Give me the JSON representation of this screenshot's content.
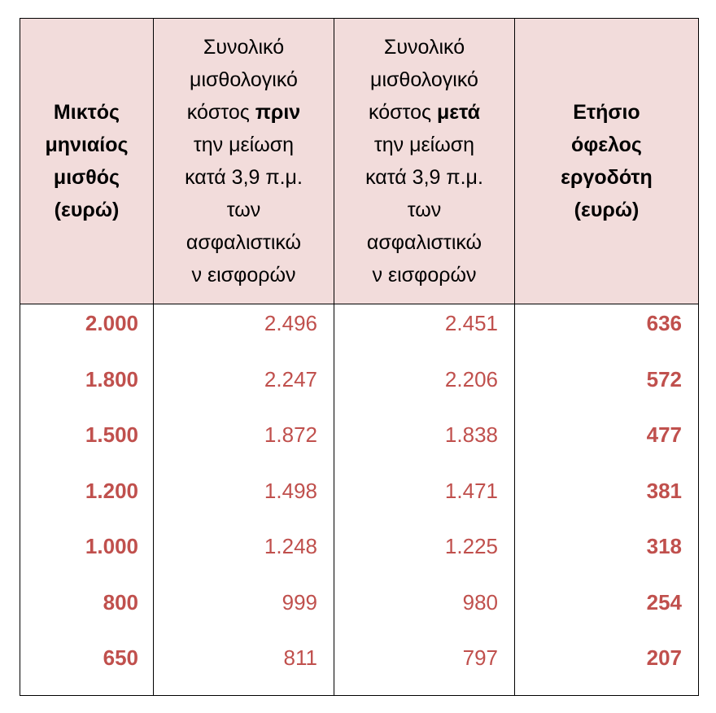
{
  "table": {
    "headers": [
      {
        "lines": [
          "Μικτός",
          "μηνιαίος",
          "μισθός",
          "(ευρώ)"
        ]
      },
      {
        "lines": [
          "Συνολικό",
          "μισθολογικό",
          "κόστος ",
          "την μείωση",
          "κατά 3,9 π.μ.",
          "των",
          "ασφαλιστικώ",
          "ν εισφορών"
        ],
        "emphasis": "πριν"
      },
      {
        "lines": [
          "Συνολικό",
          "μισθολογικό",
          "κόστος ",
          "την μείωση",
          "κατά 3,9 π.μ.",
          "των",
          "ασφαλιστικώ",
          "ν εισφορών"
        ],
        "emphasis": "μετά"
      },
      {
        "lines": [
          "Ετήσιο",
          "όφελος",
          "εργοδότη",
          "(ευρώ)"
        ]
      }
    ],
    "columns": {
      "gross_salary": [
        "2.000",
        "1.800",
        "1.500",
        "1.200",
        "1.000",
        "800",
        "650"
      ],
      "cost_before": [
        "2.496",
        "2.247",
        "1.872",
        "1.498",
        "1.248",
        "999",
        "811"
      ],
      "cost_after": [
        "2.451",
        "2.206",
        "1.838",
        "1.471",
        "1.225",
        "980",
        "797"
      ],
      "employer_benefit": [
        "636",
        "572",
        "477",
        "381",
        "318",
        "254",
        "207"
      ]
    }
  },
  "colors": {
    "header_bg": "#f2dcdb",
    "value_text": "#c0504d",
    "border": "#000000"
  }
}
